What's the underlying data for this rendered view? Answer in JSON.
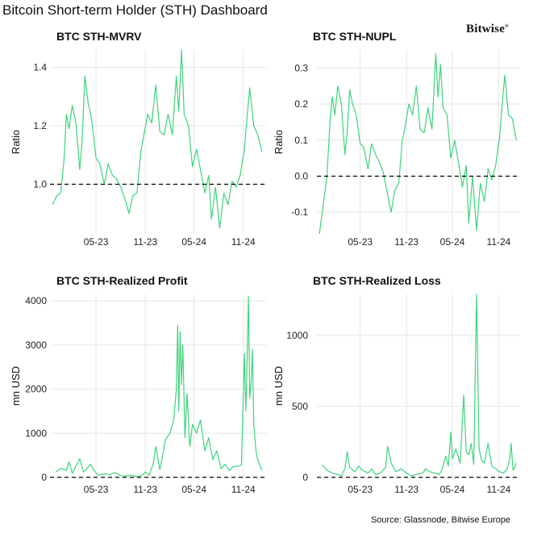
{
  "header": {
    "title": "Bitcoin Short-term Holder (STH) Dashboard",
    "logo": "Bitwise",
    "source": "Source: Glassnode, Bitwise Europe"
  },
  "colors": {
    "series": "#3dd47c",
    "zero_line": "#000000",
    "grid": "#e6e6e6"
  },
  "chart_data": [
    {
      "type": "line",
      "title": "BTC STH-MVRV",
      "ylabel": "Ratio",
      "x_ticks": [
        "05-23",
        "11-23",
        "05-24",
        "11-24"
      ],
      "y_ticks": [
        "1.0",
        "1.2",
        "1.4"
      ],
      "ylim": [
        0.83,
        1.46
      ],
      "reference_line": 1.0,
      "grid": true,
      "x": [
        "2022-11-20",
        "2022-12-05",
        "2022-12-20",
        "2023-01-01",
        "2023-01-10",
        "2023-01-20",
        "2023-02-01",
        "2023-02-15",
        "2023-03-01",
        "2023-03-10",
        "2023-03-20",
        "2023-04-01",
        "2023-04-15",
        "2023-05-01",
        "2023-05-15",
        "2023-06-01",
        "2023-06-15",
        "2023-07-01",
        "2023-07-15",
        "2023-08-01",
        "2023-08-20",
        "2023-09-01",
        "2023-09-15",
        "2023-10-01",
        "2023-10-15",
        "2023-10-25",
        "2023-11-10",
        "2023-11-25",
        "2023-12-10",
        "2023-12-25",
        "2024-01-10",
        "2024-01-25",
        "2024-02-10",
        "2024-02-25",
        "2024-03-05",
        "2024-03-15",
        "2024-03-25",
        "2024-04-10",
        "2024-04-25",
        "2024-05-10",
        "2024-05-25",
        "2024-06-10",
        "2024-06-25",
        "2024-07-05",
        "2024-07-20",
        "2024-08-05",
        "2024-08-20",
        "2024-09-05",
        "2024-09-20",
        "2024-10-05",
        "2024-10-20",
        "2024-11-05",
        "2024-11-15",
        "2024-11-25",
        "2024-12-10",
        "2024-12-25",
        "2025-01-10"
      ],
      "series": [
        {
          "values": [
            0.93,
            0.96,
            0.97,
            1.08,
            1.24,
            1.19,
            1.27,
            1.21,
            1.05,
            1.15,
            1.37,
            1.28,
            1.22,
            1.09,
            1.07,
            1.0,
            1.07,
            1.03,
            1.02,
            0.99,
            0.94,
            0.9,
            0.96,
            0.97,
            1.11,
            1.16,
            1.24,
            1.21,
            1.34,
            1.18,
            1.17,
            1.24,
            1.17,
            1.37,
            1.25,
            1.46,
            1.24,
            1.2,
            1.06,
            1.12,
            1.05,
            0.97,
            1.03,
            0.88,
            0.99,
            0.85,
            0.97,
            0.93,
            1.01,
            0.99,
            1.03,
            1.12,
            1.23,
            1.33,
            1.2,
            1.17,
            1.11
          ]
        }
      ]
    },
    {
      "type": "line",
      "title": "BTC STH-NUPL",
      "ylabel": "Ratio",
      "x_ticks": [
        "05-23",
        "11-23",
        "05-24",
        "11-24"
      ],
      "y_ticks": [
        "-0.1",
        "0.0",
        "0.1",
        "0.2",
        "0.3"
      ],
      "ylim": [
        -0.16,
        0.35
      ],
      "reference_line": 0.0,
      "grid": true,
      "x": [
        "2022-11-20",
        "2022-12-05",
        "2022-12-20",
        "2023-01-01",
        "2023-01-10",
        "2023-01-20",
        "2023-02-01",
        "2023-02-15",
        "2023-03-01",
        "2023-03-10",
        "2023-03-20",
        "2023-04-01",
        "2023-04-15",
        "2023-05-01",
        "2023-05-15",
        "2023-06-01",
        "2023-06-15",
        "2023-07-01",
        "2023-07-15",
        "2023-08-01",
        "2023-08-20",
        "2023-09-01",
        "2023-09-15",
        "2023-10-01",
        "2023-10-15",
        "2023-10-25",
        "2023-11-10",
        "2023-11-25",
        "2023-12-10",
        "2023-12-25",
        "2024-01-10",
        "2024-01-25",
        "2024-02-10",
        "2024-02-25",
        "2024-03-05",
        "2024-03-15",
        "2024-03-25",
        "2024-04-10",
        "2024-04-25",
        "2024-05-10",
        "2024-05-25",
        "2024-06-10",
        "2024-06-25",
        "2024-07-05",
        "2024-07-20",
        "2024-08-05",
        "2024-08-20",
        "2024-09-05",
        "2024-09-20",
        "2024-10-05",
        "2024-10-20",
        "2024-11-05",
        "2024-11-15",
        "2024-11-25",
        "2024-12-10",
        "2024-12-25",
        "2025-01-10"
      ],
      "series": [
        {
          "values": [
            -0.16,
            -0.08,
            0.0,
            0.15,
            0.22,
            0.17,
            0.25,
            0.2,
            0.06,
            0.12,
            0.24,
            0.2,
            0.17,
            0.09,
            0.08,
            0.02,
            0.09,
            0.06,
            0.04,
            0.01,
            -0.06,
            -0.1,
            -0.04,
            -0.02,
            0.1,
            0.13,
            0.2,
            0.17,
            0.25,
            0.13,
            0.12,
            0.19,
            0.13,
            0.34,
            0.22,
            0.31,
            0.19,
            0.17,
            0.05,
            0.1,
            0.04,
            -0.03,
            0.03,
            -0.13,
            0.0,
            -0.15,
            -0.02,
            -0.07,
            0.02,
            -0.01,
            0.03,
            0.11,
            0.2,
            0.28,
            0.17,
            0.16,
            0.1
          ]
        }
      ]
    },
    {
      "type": "line",
      "title": "BTC STH-Realized Profit",
      "ylabel": "mn USD",
      "x_ticks": [
        "05-23",
        "11-23",
        "05-24",
        "11-24"
      ],
      "y_ticks": [
        "0",
        "1000",
        "2000",
        "3000",
        "4000"
      ],
      "ylim": [
        0,
        4150
      ],
      "reference_line": 0,
      "grid": true,
      "x": [
        "2022-12-01",
        "2022-12-20",
        "2023-01-10",
        "2023-01-20",
        "2023-02-01",
        "2023-02-15",
        "2023-03-01",
        "2023-03-15",
        "2023-03-25",
        "2023-04-10",
        "2023-04-25",
        "2023-05-10",
        "2023-06-01",
        "2023-06-20",
        "2023-07-10",
        "2023-08-01",
        "2023-08-20",
        "2023-09-10",
        "2023-10-01",
        "2023-10-20",
        "2023-11-01",
        "2023-11-15",
        "2023-12-01",
        "2023-12-10",
        "2023-12-25",
        "2024-01-05",
        "2024-01-15",
        "2024-02-01",
        "2024-02-15",
        "2024-02-25",
        "2024-03-01",
        "2024-03-05",
        "2024-03-10",
        "2024-03-15",
        "2024-03-20",
        "2024-03-28",
        "2024-04-05",
        "2024-04-15",
        "2024-04-25",
        "2024-05-10",
        "2024-05-25",
        "2024-06-10",
        "2024-06-25",
        "2024-07-10",
        "2024-07-25",
        "2024-08-10",
        "2024-08-25",
        "2024-09-10",
        "2024-09-25",
        "2024-10-10",
        "2024-10-25",
        "2024-11-05",
        "2024-11-10",
        "2024-11-13",
        "2024-11-20",
        "2024-11-25",
        "2024-12-01",
        "2024-12-05",
        "2024-12-10",
        "2024-12-18",
        "2024-12-25",
        "2025-01-10"
      ],
      "series": [
        {
          "values": [
            120,
            200,
            160,
            350,
            90,
            260,
            420,
            120,
            180,
            300,
            140,
            50,
            80,
            60,
            110,
            40,
            30,
            50,
            20,
            40,
            120,
            50,
            320,
            700,
            180,
            500,
            850,
            1000,
            1300,
            2000,
            3450,
            1500,
            3300,
            2100,
            3000,
            900,
            1900,
            700,
            1200,
            1000,
            1300,
            600,
            900,
            400,
            600,
            200,
            300,
            150,
            250,
            250,
            280,
            2800,
            1500,
            2100,
            4100,
            1800,
            2200,
            2900,
            1200,
            600,
            400,
            150
          ]
        }
      ]
    },
    {
      "type": "line",
      "title": "BTC STH-Realized Loss",
      "ylabel": "mn USD",
      "x_ticks": [
        "05-23",
        "11-23",
        "05-24",
        "11-24"
      ],
      "y_ticks": [
        "0",
        "500",
        "1000"
      ],
      "ylim": [
        0,
        1290
      ],
      "reference_line": 0,
      "grid": true,
      "x": [
        "2022-12-01",
        "2022-12-20",
        "2023-01-10",
        "2023-02-01",
        "2023-02-15",
        "2023-03-01",
        "2023-03-10",
        "2023-03-20",
        "2023-04-10",
        "2023-04-25",
        "2023-05-10",
        "2023-06-01",
        "2023-06-15",
        "2023-07-01",
        "2023-07-20",
        "2023-08-10",
        "2023-08-18",
        "2023-09-01",
        "2023-09-20",
        "2023-10-10",
        "2023-11-01",
        "2023-11-20",
        "2023-12-10",
        "2024-01-05",
        "2024-01-15",
        "2024-02-01",
        "2024-02-20",
        "2024-03-10",
        "2024-03-20",
        "2024-04-05",
        "2024-04-15",
        "2024-04-25",
        "2024-05-01",
        "2024-05-15",
        "2024-06-01",
        "2024-06-15",
        "2024-06-25",
        "2024-07-05",
        "2024-07-15",
        "2024-07-25",
        "2024-08-05",
        "2024-08-15",
        "2024-08-25",
        "2024-09-05",
        "2024-09-20",
        "2024-10-05",
        "2024-10-20",
        "2024-11-05",
        "2024-11-20",
        "2024-12-05",
        "2024-12-15",
        "2024-12-20",
        "2024-12-28",
        "2025-01-10"
      ],
      "series": [
        {
          "values": [
            90,
            50,
            30,
            20,
            10,
            60,
            180,
            70,
            40,
            80,
            50,
            30,
            60,
            20,
            30,
            70,
            220,
            100,
            40,
            60,
            30,
            10,
            20,
            30,
            60,
            40,
            30,
            20,
            50,
            150,
            80,
            320,
            130,
            200,
            100,
            580,
            180,
            160,
            240,
            90,
            1290,
            200,
            120,
            100,
            240,
            80,
            60,
            40,
            30,
            60,
            130,
            240,
            50,
            100
          ]
        }
      ]
    }
  ]
}
